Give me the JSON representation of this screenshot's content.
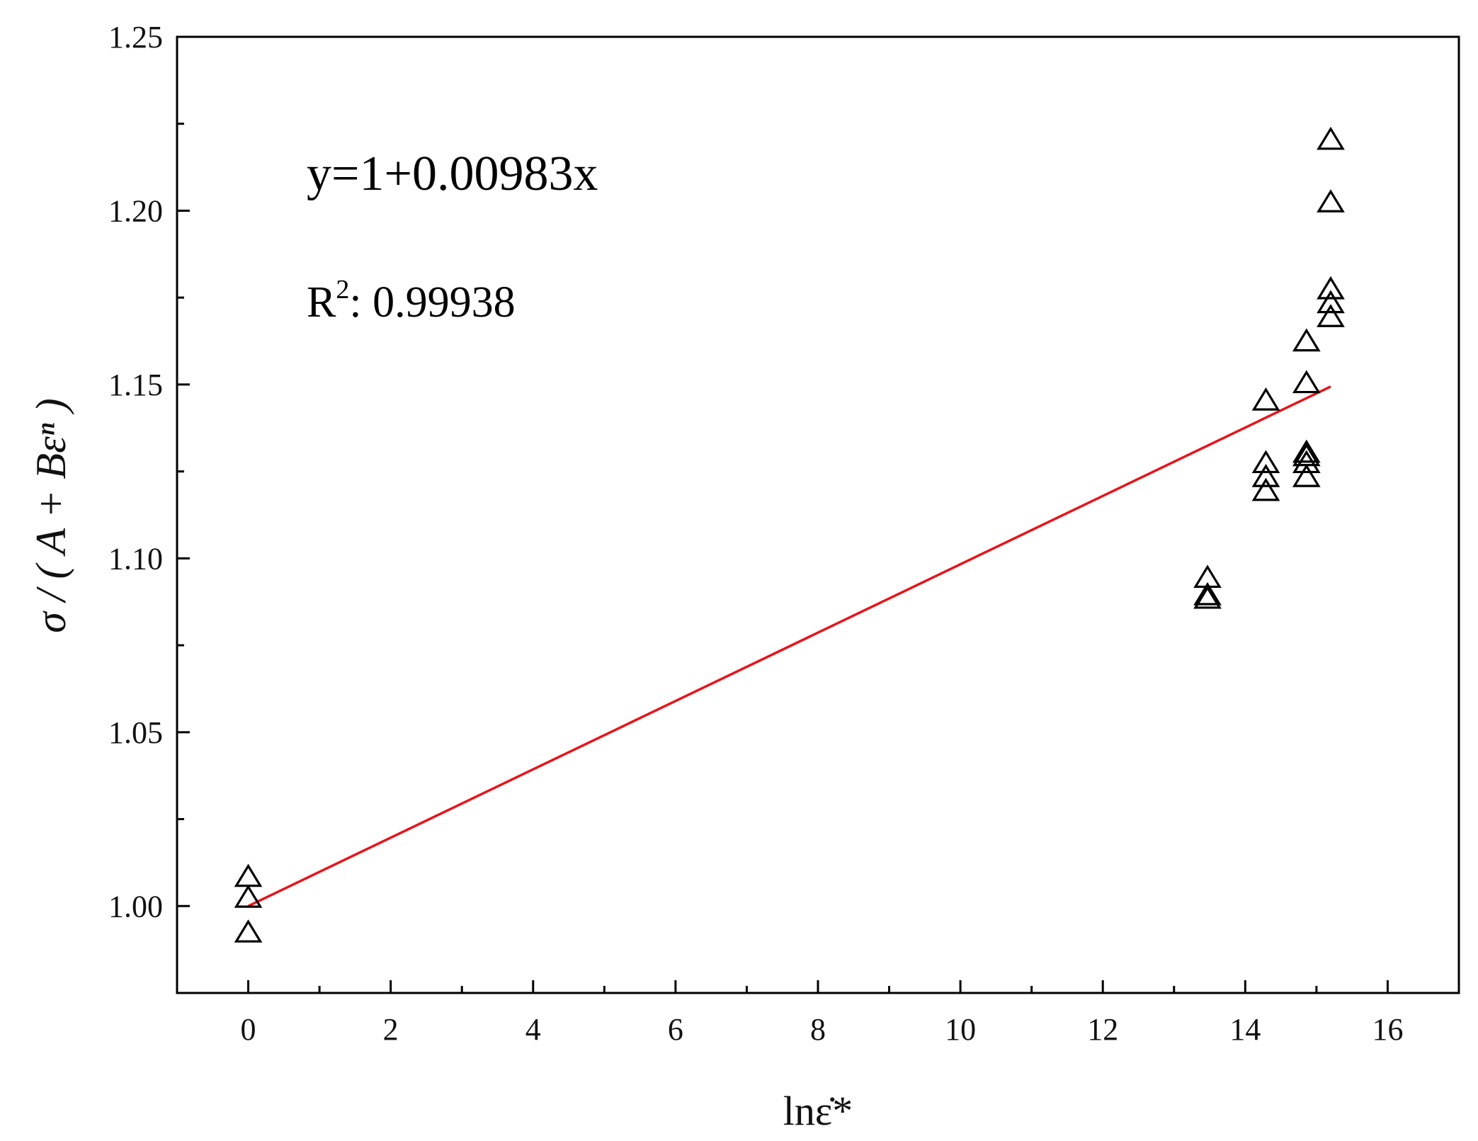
{
  "chart_data": {
    "type": "scatter",
    "xlabel": "lnε̇*",
    "ylabel": "σ / ( A + Bεⁿ )",
    "xlim": [
      -1,
      17
    ],
    "ylim": [
      0.975,
      1.25
    ],
    "xticks": [
      0,
      2,
      4,
      6,
      8,
      10,
      12,
      14,
      16
    ],
    "yticks": [
      1.0,
      1.05,
      1.1,
      1.15,
      1.2,
      1.25
    ],
    "xtick_labels": [
      "0",
      "2",
      "4",
      "6",
      "8",
      "10",
      "12",
      "14",
      "16"
    ],
    "ytick_labels": [
      "1.00",
      "1.05",
      "1.10",
      "1.15",
      "1.20",
      "1.25"
    ],
    "grid": false,
    "legend": "none",
    "colors": {
      "marker": "#000000",
      "fit_line": "#e8141b",
      "axes": "#000000"
    },
    "series": [
      {
        "marker": "open-triangle",
        "points": [
          {
            "x": 0,
            "y": 1.008
          },
          {
            "x": 0,
            "y": 1.002
          },
          {
            "x": 0,
            "y": 0.992
          },
          {
            "x": 13.47,
            "y": 1.094
          },
          {
            "x": 13.47,
            "y": 1.089
          },
          {
            "x": 13.47,
            "y": 1.088
          },
          {
            "x": 14.29,
            "y": 1.145
          },
          {
            "x": 14.29,
            "y": 1.127
          },
          {
            "x": 14.29,
            "y": 1.123
          },
          {
            "x": 14.29,
            "y": 1.119
          },
          {
            "x": 14.86,
            "y": 1.162
          },
          {
            "x": 14.86,
            "y": 1.15
          },
          {
            "x": 14.86,
            "y": 1.13
          },
          {
            "x": 14.86,
            "y": 1.129
          },
          {
            "x": 14.86,
            "y": 1.127
          },
          {
            "x": 14.86,
            "y": 1.123
          },
          {
            "x": 15.2,
            "y": 1.22
          },
          {
            "x": 15.2,
            "y": 1.202
          },
          {
            "x": 15.2,
            "y": 1.177
          },
          {
            "x": 15.2,
            "y": 1.173
          },
          {
            "x": 15.2,
            "y": 1.169
          }
        ]
      }
    ],
    "fit": {
      "intercept": 1,
      "slope": 0.00983,
      "x_range": [
        0,
        15.2
      ]
    },
    "annotations": {
      "equation": "y=1+0.00983x",
      "r2_label": "R",
      "r2_sup": "2",
      "r2_value": ": 0.99938"
    }
  }
}
